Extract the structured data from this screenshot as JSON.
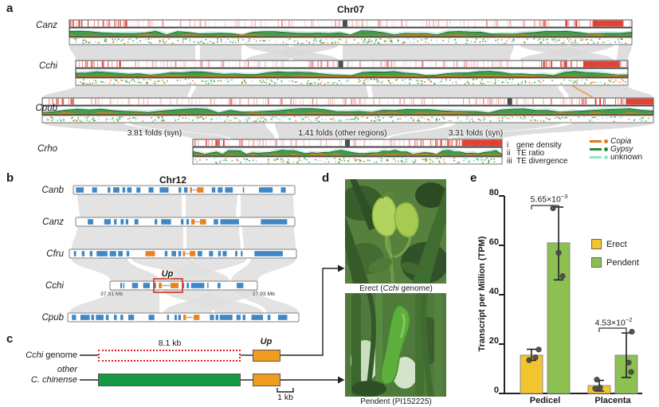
{
  "panel_letters": {
    "a": "a",
    "b": "b",
    "c": "c",
    "d": "d",
    "e": "e"
  },
  "panel_a": {
    "title": "Chr07",
    "species": [
      "Canz",
      "Cchi",
      "Cpub",
      "Crho"
    ],
    "fold_labels": [
      "3.81 folds (syn)",
      "1.41 folds (other regions)",
      "3.31 folds (syn)"
    ],
    "track_legend": [
      {
        "num": "i",
        "label": "gene density"
      },
      {
        "num": "ii",
        "label": "TE ratio"
      },
      {
        "num": "iii",
        "label": "TE divergence"
      }
    ],
    "te_legend": [
      {
        "label": "Copia",
        "color": "#e07818",
        "italic": true
      },
      {
        "label": "Gypsy",
        "color": "#2d8a3e",
        "italic": true
      },
      {
        "label": "unknown",
        "color": "#8fe6cc",
        "italic": false
      }
    ],
    "colors": {
      "gene_density_red": "#e23222",
      "te_green": "#3f9e4a",
      "te_mint": "#c2eedd",
      "copia_orange": "#e8821f",
      "ribbon_gray": "#d8d8d8",
      "centromere": "#454f52"
    }
  },
  "panel_b": {
    "title": "Chr12",
    "up_label": "Up",
    "left_coord": "37.91 Mb",
    "right_coord": "37.93 Mb",
    "colors": {
      "block_blue": "#3f87c5",
      "block_orange": "#e8821f",
      "highlight_box_red": "#d43b1f"
    },
    "rows": [
      {
        "label": "Canb",
        "blocks": [
          [
            0.012,
            0.035,
            "b"
          ],
          [
            0.085,
            0.022,
            "b"
          ],
          [
            0.155,
            0.012,
            "b"
          ],
          [
            0.18,
            0.028,
            "b"
          ],
          [
            0.222,
            0.012,
            "b"
          ],
          [
            0.243,
            0.02,
            "b"
          ],
          [
            0.285,
            0.018,
            "b"
          ],
          [
            0.34,
            0.022,
            "b"
          ],
          [
            0.39,
            0.04,
            "b"
          ],
          [
            0.475,
            0.012,
            "b"
          ],
          [
            0.5,
            0.016,
            "b"
          ],
          [
            0.527,
            0.009,
            "o"
          ],
          [
            0.538,
            0.018,
            "l"
          ],
          [
            0.558,
            0.03,
            "o"
          ],
          [
            0.625,
            0.016,
            "b"
          ],
          [
            0.652,
            0.022,
            "b"
          ],
          [
            0.685,
            0.035,
            "b"
          ],
          [
            0.765,
            0.006,
            "b"
          ],
          [
            0.838,
            0.062,
            "b"
          ],
          [
            0.937,
            0.022,
            "b"
          ]
        ]
      },
      {
        "label": "Canz",
        "blocks": [
          [
            0.055,
            0.025,
            "b"
          ],
          [
            0.13,
            0.03,
            "b"
          ],
          [
            0.175,
            0.012,
            "b"
          ],
          [
            0.205,
            0.014,
            "b"
          ],
          [
            0.228,
            0.012,
            "b"
          ],
          [
            0.268,
            0.018,
            "b"
          ],
          [
            0.36,
            0.012,
            "b"
          ],
          [
            0.39,
            0.045,
            "b"
          ],
          [
            0.48,
            0.012,
            "b"
          ],
          [
            0.505,
            0.012,
            "b"
          ],
          [
            0.527,
            0.016,
            "o"
          ],
          [
            0.545,
            0.02,
            "l"
          ],
          [
            0.567,
            0.028,
            "o"
          ],
          [
            0.63,
            0.02,
            "b"
          ],
          [
            0.66,
            0.085,
            "b"
          ],
          [
            0.845,
            0.12,
            "b"
          ]
        ]
      },
      {
        "label": "Cfru",
        "blocks": [
          [
            0.02,
            0.01,
            "b"
          ],
          [
            0.055,
            0.012,
            "b"
          ],
          [
            0.09,
            0.012,
            "b"
          ],
          [
            0.12,
            0.048,
            "b"
          ],
          [
            0.178,
            0.028,
            "b"
          ],
          [
            0.215,
            0.02,
            "b"
          ],
          [
            0.252,
            0.012,
            "b"
          ],
          [
            0.335,
            0.042,
            "o"
          ],
          [
            0.42,
            0.012,
            "b"
          ],
          [
            0.45,
            0.02,
            "b"
          ],
          [
            0.48,
            0.012,
            "b"
          ],
          [
            0.5,
            0.01,
            "o"
          ],
          [
            0.512,
            0.016,
            "l"
          ],
          [
            0.53,
            0.025,
            "o"
          ],
          [
            0.565,
            0.02,
            "b"
          ],
          [
            0.615,
            0.018,
            "b"
          ],
          [
            0.655,
            0.012,
            "b"
          ],
          [
            0.675,
            0.018,
            "b"
          ],
          [
            0.73,
            0.01,
            "b"
          ],
          [
            0.755,
            0.008,
            "b"
          ],
          [
            0.815,
            0.125,
            "b"
          ]
        ]
      },
      {
        "label": "Cchi",
        "blocks": [
          [
            0.07,
            0.012,
            "b"
          ],
          [
            0.09,
            0.008,
            "b"
          ],
          [
            0.15,
            0.04,
            "b"
          ],
          [
            0.225,
            0.045,
            "b"
          ],
          [
            0.295,
            0.018,
            "b"
          ],
          [
            0.33,
            0.022,
            "o"
          ],
          [
            0.355,
            0.05,
            "l"
          ],
          [
            0.41,
            0.055,
            "o"
          ],
          [
            0.49,
            0.014,
            "b"
          ],
          [
            0.52,
            0.016,
            "b"
          ],
          [
            0.55,
            0.09,
            "b"
          ],
          [
            0.66,
            0.008,
            "b"
          ],
          [
            0.73,
            0.02,
            "b"
          ],
          [
            0.86,
            0.045,
            "b"
          ]
        ]
      },
      {
        "label": "Cpub",
        "blocks": [
          [
            0.018,
            0.018,
            "b"
          ],
          [
            0.055,
            0.04,
            "b"
          ],
          [
            0.102,
            0.012,
            "b"
          ],
          [
            0.122,
            0.033,
            "b"
          ],
          [
            0.165,
            0.012,
            "b"
          ],
          [
            0.2,
            0.012,
            "b"
          ],
          [
            0.228,
            0.012,
            "b"
          ],
          [
            0.262,
            0.025,
            "b"
          ],
          [
            0.35,
            0.025,
            "b"
          ],
          [
            0.43,
            0.008,
            "b"
          ],
          [
            0.462,
            0.01,
            "b"
          ],
          [
            0.478,
            0.012,
            "b"
          ],
          [
            0.5,
            0.012,
            "o"
          ],
          [
            0.514,
            0.028,
            "l"
          ],
          [
            0.545,
            0.025,
            "o"
          ],
          [
            0.615,
            0.018,
            "b"
          ],
          [
            0.64,
            0.012,
            "b"
          ],
          [
            0.658,
            0.055,
            "b"
          ],
          [
            0.73,
            0.018,
            "b"
          ],
          [
            0.757,
            0.012,
            "b"
          ],
          [
            0.795,
            0.05,
            "b"
          ],
          [
            0.865,
            0.012,
            "b"
          ],
          [
            0.91,
            0.04,
            "b"
          ]
        ]
      }
    ]
  },
  "panel_c": {
    "row1_label": {
      "italic": "Cchi",
      "rest": " genome"
    },
    "row2_label_line1": "other",
    "row2_label_line2": "C. chinense",
    "deletion_label": "8.1 kb",
    "gene_label": "Up",
    "scale_label": "1 kb",
    "colors": {
      "deletion_dashed_red": "#e21b1b",
      "insertion_green": "#159a44",
      "gene_orange": "#f09c1e"
    }
  },
  "panel_d": {
    "erect_caption": {
      "prefix": "Erect (",
      "italic": "Cchi",
      "suffix": " genome)"
    },
    "pendent_caption": "Pendent (PI152225)"
  },
  "chart_data": {
    "type": "bar",
    "ylabel": "Transcript per Million (TPM)",
    "ylim": [
      0,
      80
    ],
    "yticks": [
      0,
      20,
      40,
      60,
      80
    ],
    "categories": [
      "Pedicel",
      "Placenta"
    ],
    "series": [
      {
        "name": "Erect",
        "color": "#f2c52e",
        "values": [
          15.5,
          3.2
        ],
        "error_low": [
          13.4,
          1.0
        ],
        "error_high": [
          17.9,
          5.3
        ],
        "points": [
          [
            13.5,
            14.6,
            17.8
          ],
          [
            2.0,
            2.4,
            5.6
          ]
        ]
      },
      {
        "name": "Pendent",
        "color": "#8cc152",
        "values": [
          61,
          15.5
        ],
        "error_low": [
          46,
          6.5
        ],
        "error_high": [
          75.5,
          24.5
        ],
        "points": [
          [
            75,
            57,
            47.5
          ],
          [
            25,
            12.5,
            8.7
          ]
        ]
      }
    ],
    "significance": [
      {
        "mantissa": "5.65×10",
        "exponent": "−3"
      },
      {
        "mantissa": "4.53×10",
        "exponent": "−2"
      }
    ],
    "legend": [
      "Erect",
      "Pendent"
    ],
    "legend_position": "right-inside",
    "grid": false
  }
}
